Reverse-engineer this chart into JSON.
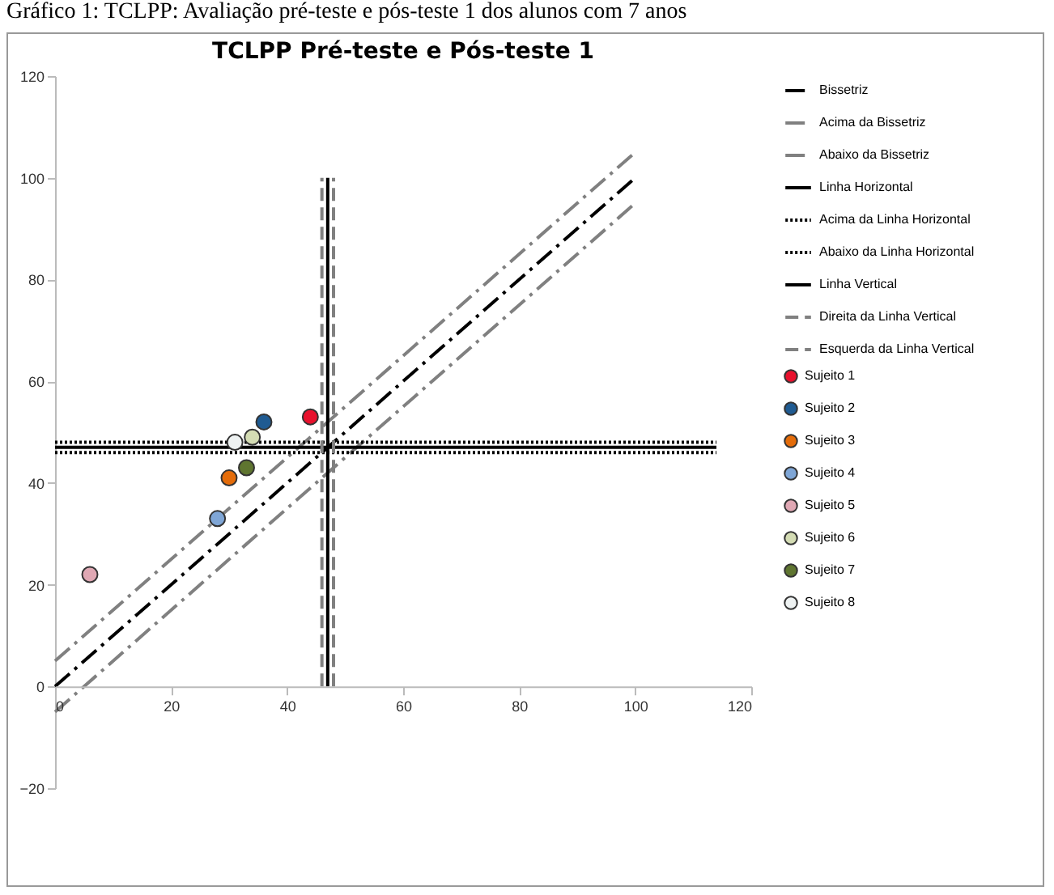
{
  "chart_data": {
    "type": "scatter",
    "title": "TCLPP Pré-teste e Pós-teste 1",
    "annotations": [
      "Gráfico 1: TCLPP: Avaliação pré-teste e pós-teste 1 dos alunos com 7 anos"
    ],
    "xlim": [
      0,
      120
    ],
    "xticks": [
      0,
      20,
      40,
      60,
      80,
      100,
      120
    ],
    "ylim": [
      -20,
      120
    ],
    "yticks": [
      -20,
      0,
      20,
      40,
      60,
      80,
      100,
      120
    ],
    "grid": false,
    "legend": "right",
    "series": [
      {
        "name": "Bissetriz",
        "type": "line",
        "marker": "none",
        "line_style": "dashdot",
        "color": "#000000",
        "x": [
          0,
          100
        ],
        "values": [
          0,
          100
        ]
      },
      {
        "name": "Acima da Bissetriz",
        "type": "line",
        "marker": "none",
        "line_style": "dashdot",
        "color": "#808080",
        "x": [
          0,
          100
        ],
        "values": [
          5,
          105
        ]
      },
      {
        "name": "Abaixo da Bissetriz",
        "type": "line",
        "marker": "none",
        "line_style": "dashdot",
        "color": "#808080",
        "x": [
          0,
          100
        ],
        "values": [
          -5,
          95
        ]
      },
      {
        "name": "Linha Horizontal",
        "type": "line",
        "marker": "none",
        "line_style": "solid",
        "color": "#000000",
        "x": [
          0,
          114
        ],
        "values": [
          47,
          47
        ]
      },
      {
        "name": "Acima da Linha Horizontal",
        "type": "line",
        "marker": "none",
        "line_style": "dotted",
        "color": "#000000",
        "x": [
          0,
          114
        ],
        "values": [
          48,
          48
        ]
      },
      {
        "name": "Abaixo da Linha Horizontal",
        "type": "line",
        "marker": "none",
        "line_style": "dotted",
        "color": "#000000",
        "x": [
          0,
          114
        ],
        "values": [
          46,
          46
        ]
      },
      {
        "name": "Linha Vertical",
        "type": "line",
        "marker": "none",
        "line_style": "solid",
        "color": "#000000",
        "x": [
          47,
          47
        ],
        "values": [
          0,
          100
        ]
      },
      {
        "name": "Direita da Linha Vertical",
        "type": "line",
        "marker": "none",
        "line_style": "dashed",
        "color": "#808080",
        "x": [
          48,
          48
        ],
        "values": [
          0,
          100
        ]
      },
      {
        "name": "Esquerda da Linha Vertical",
        "type": "line",
        "marker": "none",
        "line_style": "dashed",
        "color": "#808080",
        "x": [
          46,
          46
        ],
        "values": [
          0,
          100
        ]
      },
      {
        "name": "Sujeito 1",
        "marker": "circle",
        "color": "#e8112d",
        "x": [
          44
        ],
        "values": [
          53
        ]
      },
      {
        "name": "Sujeito 2",
        "marker": "circle",
        "color": "#1f5b92",
        "x": [
          36
        ],
        "values": [
          52
        ]
      },
      {
        "name": "Sujeito 3",
        "marker": "circle",
        "color": "#e46c0a",
        "x": [
          30
        ],
        "values": [
          41
        ]
      },
      {
        "name": "Sujeito 4",
        "marker": "circle",
        "color": "#7fa6d6",
        "x": [
          28
        ],
        "values": [
          33
        ]
      },
      {
        "name": "Sujeito 5",
        "marker": "circle",
        "color": "#e0a8b4",
        "x": [
          6
        ],
        "values": [
          22
        ]
      },
      {
        "name": "Sujeito 6",
        "marker": "circle",
        "color": "#d4dcb4",
        "x": [
          34
        ],
        "values": [
          49
        ]
      },
      {
        "name": "Sujeito 7",
        "marker": "circle",
        "color": "#5f7530",
        "x": [
          33
        ],
        "values": [
          43
        ]
      },
      {
        "name": "Sujeito 8",
        "marker": "circle",
        "color": "#eef2f2",
        "x": [
          31
        ],
        "values": [
          48
        ]
      }
    ]
  }
}
